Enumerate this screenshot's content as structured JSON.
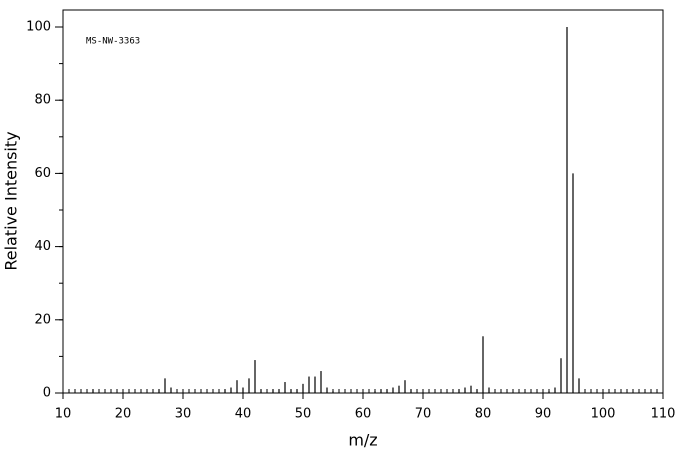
{
  "chart_data": {
    "type": "stem",
    "annotation": "MS-NW-3363",
    "x_label": "m/z",
    "y_label": "Relative Intensity",
    "color": "#000000",
    "x": [
      15,
      26,
      27,
      28,
      37,
      38,
      39,
      40,
      41,
      42,
      43,
      45,
      46,
      47,
      48,
      49,
      50,
      51,
      52,
      53,
      54,
      55,
      62,
      63,
      64,
      65,
      66,
      67,
      68,
      76,
      77,
      78,
      79,
      80,
      81,
      91,
      92,
      93,
      94,
      95,
      96
    ],
    "values": [
      1,
      1,
      4,
      1.5,
      1,
      1.5,
      3.5,
      1.5,
      4,
      9,
      1,
      1,
      1,
      3,
      1,
      1,
      2.5,
      4.5,
      4.5,
      6,
      1.5,
      0.5,
      0.5,
      1,
      1,
      1.5,
      2,
      3.5,
      1,
      1,
      1.5,
      2,
      1,
      15.5,
      1.5,
      0.5,
      1.5,
      9.5,
      100,
      60,
      4
    ],
    "xlim": [
      10,
      110
    ],
    "ylim": [
      0,
      100
    ],
    "xticks": [
      10,
      20,
      30,
      40,
      50,
      60,
      70,
      80,
      90,
      100,
      110
    ],
    "yticks": [
      0,
      20,
      40,
      60,
      80,
      100
    ],
    "xticks_minor": [
      10,
      11,
      12,
      13,
      14,
      15,
      16,
      17,
      18,
      19,
      20,
      21,
      22,
      23,
      24,
      25,
      26,
      27,
      28,
      29,
      30,
      31,
      32,
      33,
      34,
      35,
      36,
      37,
      38,
      39,
      40,
      41,
      42,
      43,
      44,
      45,
      46,
      47,
      48,
      49,
      50,
      51,
      52,
      53,
      54,
      55,
      56,
      57,
      58,
      59,
      60,
      61,
      62,
      63,
      64,
      65,
      66,
      67,
      68,
      69,
      70,
      71,
      72,
      73,
      74,
      75,
      76,
      77,
      78,
      79,
      80,
      81,
      82,
      83,
      84,
      85,
      86,
      87,
      88,
      89,
      90,
      91,
      92,
      93,
      94,
      95,
      96,
      97,
      98,
      99,
      100,
      101,
      102,
      103,
      104,
      105,
      106,
      107,
      108,
      109,
      110
    ],
    "yticks_minor": [
      0,
      10,
      20,
      30,
      40,
      50,
      60,
      70,
      80,
      90,
      100
    ]
  }
}
